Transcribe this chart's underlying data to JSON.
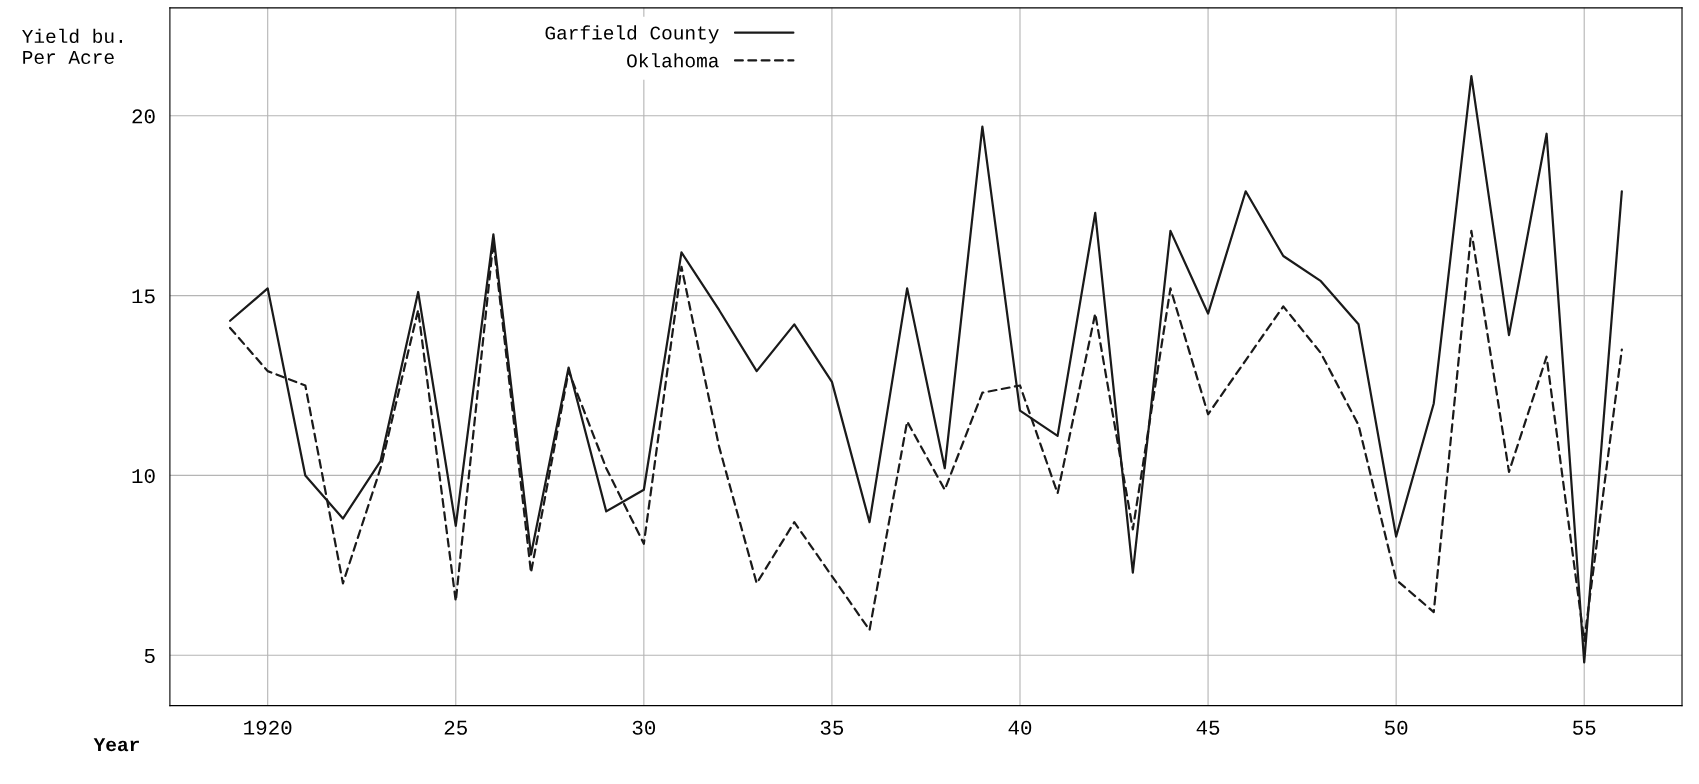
{
  "chart_data": {
    "type": "line",
    "xlabel": "Year",
    "ylabel": "Yield bu.\nPer Acre",
    "x": [
      1919,
      1920,
      1921,
      1922,
      1923,
      1924,
      1925,
      1926,
      1927,
      1928,
      1929,
      1930,
      1931,
      1932,
      1933,
      1934,
      1935,
      1936,
      1937,
      1938,
      1939,
      1940,
      1941,
      1942,
      1943,
      1944,
      1945,
      1946,
      1947,
      1948,
      1949,
      1950,
      1951,
      1952,
      1953,
      1954,
      1955,
      1956
    ],
    "series": [
      {
        "name": "Garfield County",
        "color": "#1a1a1a",
        "line_style": "solid",
        "values": [
          14.3,
          15.2,
          10.0,
          8.8,
          10.4,
          15.1,
          8.6,
          16.7,
          7.8,
          13.0,
          9.0,
          9.6,
          16.2,
          14.6,
          12.9,
          14.2,
          12.6,
          8.7,
          15.2,
          10.2,
          19.7,
          11.8,
          11.1,
          17.3,
          7.3,
          16.8,
          14.5,
          17.9,
          16.1,
          15.4,
          14.2,
          8.3,
          12.0,
          21.1,
          13.9,
          19.5,
          4.8,
          17.9
        ]
      },
      {
        "name": "Oklahoma",
        "color": "#1a1a1a",
        "line_style": "dashed",
        "values": [
          14.1,
          12.9,
          12.5,
          7.0,
          10.2,
          14.6,
          6.5,
          16.5,
          7.3,
          12.9,
          10.2,
          8.1,
          15.8,
          10.8,
          7.0,
          8.7,
          7.2,
          5.7,
          11.5,
          9.6,
          12.3,
          12.5,
          9.5,
          14.5,
          8.5,
          15.2,
          11.7,
          13.2,
          14.7,
          13.4,
          11.4,
          7.1,
          6.2,
          16.8,
          10.1,
          13.3,
          5.4,
          13.5
        ]
      }
    ],
    "xlim": [
      1917.4,
      1957.6
    ],
    "ylim": [
      3.6,
      23
    ],
    "xticks": [
      {
        "value": 1920,
        "label": "1920"
      },
      {
        "value": 1925,
        "label": "25"
      },
      {
        "value": 1930,
        "label": "30"
      },
      {
        "value": 1935,
        "label": "35"
      },
      {
        "value": 1940,
        "label": "40"
      },
      {
        "value": 1945,
        "label": "45"
      },
      {
        "value": 1950,
        "label": "50"
      },
      {
        "value": 1955,
        "label": "55"
      }
    ],
    "yticks": [
      5,
      10,
      15,
      20
    ],
    "grid": true,
    "legend": "top",
    "marker": "none"
  }
}
